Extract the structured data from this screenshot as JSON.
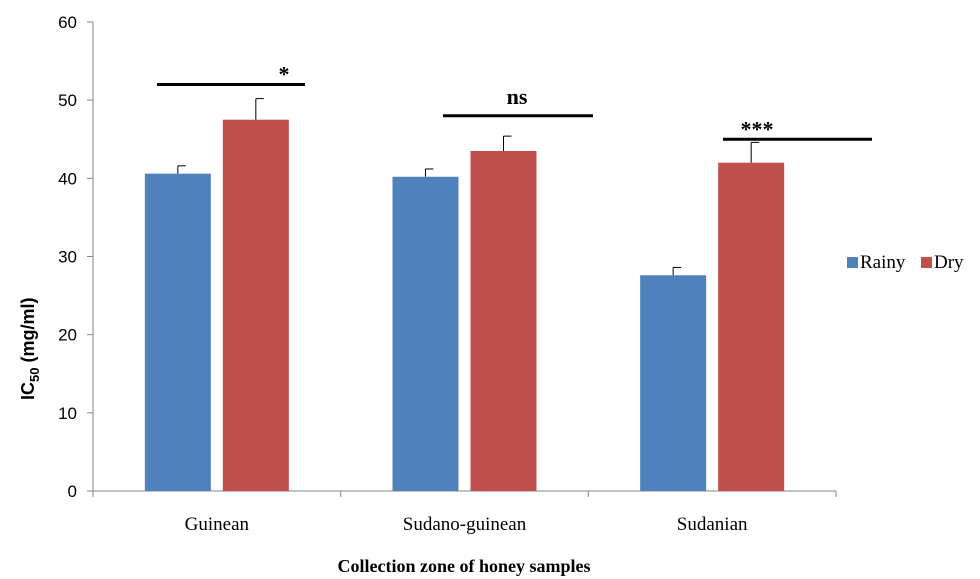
{
  "chart_data": {
    "type": "bar",
    "categories": [
      "Guinean",
      "Sudano-guinean",
      "Sudanian"
    ],
    "series": [
      {
        "name": "Rainy",
        "color": "#4f81bd",
        "values": [
          40.6,
          40.2,
          27.6
        ],
        "errors": [
          1.0,
          1.0,
          1.0
        ]
      },
      {
        "name": "Dry",
        "color": "#c0504d",
        "values": [
          47.5,
          43.5,
          42.0
        ],
        "errors": [
          2.7,
          1.9,
          2.6
        ]
      }
    ],
    "ylim": [
      0,
      60
    ],
    "yticks": [
      "0",
      "10",
      "20",
      "30",
      "40",
      "50",
      "60"
    ],
    "ylabel_main": "IC",
    "ylabel_sub": "50",
    "ylabel_unit": " (mg/ml)",
    "xlabel": "Collection zone of honey samples",
    "legend_position": "right",
    "grid": false,
    "significance": [
      {
        "category": "Guinean",
        "label": "*",
        "y": 52
      },
      {
        "category": "Sudano-guinean",
        "label": "ns",
        "y": 48
      },
      {
        "category": "Sudanian",
        "label": "***",
        "y": 45
      }
    ]
  }
}
